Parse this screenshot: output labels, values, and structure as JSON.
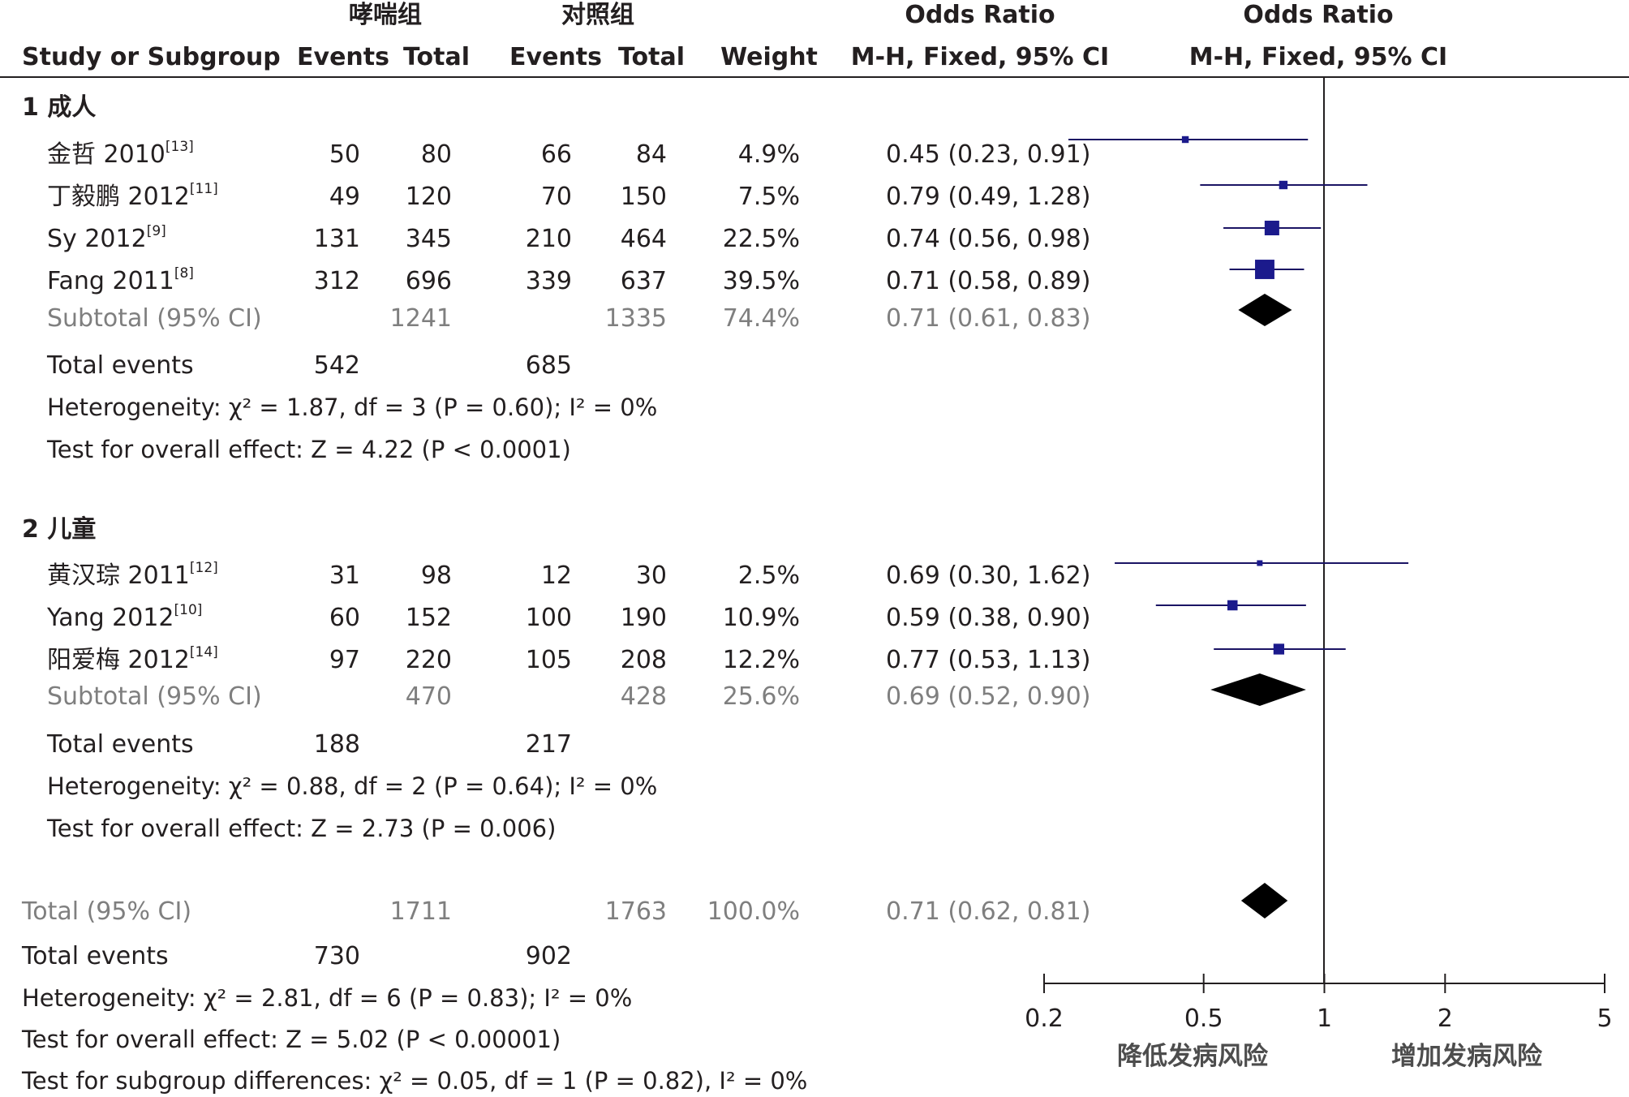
{
  "header": {
    "group1_name": "哮喘组",
    "group2_name": "对照组",
    "study_col": "Study or Subgroup",
    "events_label": "Events",
    "total_label": "Total",
    "weight_label": "Weight",
    "or_title": "Odds Ratio",
    "or_method": "M-H, Fixed, 95% CI"
  },
  "subgroups": [
    {
      "title": "1  成人",
      "studies": [
        {
          "name": "金哲 2010",
          "ref": "[13]",
          "e1": "50",
          "t1": "80",
          "e2": "66",
          "t2": "84",
          "weight": "4.9%",
          "ci_text": "0.45 (0.23, 0.91)"
        },
        {
          "name": "丁毅鹏 2012",
          "ref": "[11]",
          "e1": "49",
          "t1": "120",
          "e2": "70",
          "t2": "150",
          "weight": "7.5%",
          "ci_text": "0.79 (0.49, 1.28)"
        },
        {
          "name": "Sy 2012",
          "ref": "[9]",
          "e1": "131",
          "t1": "345",
          "e2": "210",
          "t2": "464",
          "weight": "22.5%",
          "ci_text": "0.74 (0.56, 0.98)"
        },
        {
          "name": "Fang 2011",
          "ref": "[8]",
          "e1": "312",
          "t1": "696",
          "e2": "339",
          "t2": "637",
          "weight": "39.5%",
          "ci_text": "0.71 (0.58, 0.89)"
        }
      ],
      "subtotal": {
        "label": "Subtotal (95% CI)",
        "t1": "1241",
        "t2": "1335",
        "weight": "74.4%",
        "ci_text": "0.71 (0.61, 0.83)"
      },
      "total_events": {
        "label": "Total events",
        "e1": "542",
        "e2": "685"
      },
      "heterogeneity": "Heterogeneity: χ² = 1.87, df = 3 (P = 0.60); I² = 0%",
      "overall": "Test for overall effect: Z = 4.22 (P < 0.0001)"
    },
    {
      "title": "2  儿童",
      "studies": [
        {
          "name": "黄汉琮 2011",
          "ref": "[12]",
          "e1": "31",
          "t1": "98",
          "e2": "12",
          "t2": "30",
          "weight": "2.5%",
          "ci_text": "0.69 (0.30, 1.62)"
        },
        {
          "name": "Yang 2012",
          "ref": "[10]",
          "e1": "60",
          "t1": "152",
          "e2": "100",
          "t2": "190",
          "weight": "10.9%",
          "ci_text": "0.59 (0.38, 0.90)"
        },
        {
          "name": "阳爱梅 2012",
          "ref": "[14]",
          "e1": "97",
          "t1": "220",
          "e2": "105",
          "t2": "208",
          "weight": "12.2%",
          "ci_text": "0.77 (0.53, 1.13)"
        }
      ],
      "subtotal": {
        "label": "Subtotal (95% CI)",
        "t1": "470",
        "t2": "428",
        "weight": "25.6%",
        "ci_text": "0.69 (0.52, 0.90)"
      },
      "total_events": {
        "label": "Total events",
        "e1": "188",
        "e2": "217"
      },
      "heterogeneity": "Heterogeneity: χ² = 0.88, df = 2 (P = 0.64); I² = 0%",
      "overall": "Test for overall effect: Z = 2.73 (P = 0.006)"
    }
  ],
  "total": {
    "label": "Total (95% CI)",
    "t1": "1711",
    "t2": "1763",
    "weight": "100.0%",
    "ci_text": "0.71 (0.62, 0.81)",
    "total_events_label": "Total events",
    "e1": "730",
    "e2": "902",
    "heterogeneity": "Heterogeneity: χ² = 2.81, df = 6 (P = 0.83); I² = 0%",
    "overall": "Test for overall effect: Z = 5.02 (P < 0.00001)",
    "subgroup_diff": "Test for subgroup differences: χ² = 0.05, df = 1 (P = 0.82), I² = 0%"
  },
  "axis": {
    "ticks": [
      0.2,
      0.5,
      1,
      2,
      5
    ],
    "tick_labels": [
      "0.2",
      "0.5",
      "1",
      "2",
      "5"
    ],
    "favours_left": "降低发病风险",
    "favours_right": "增加发病风险"
  },
  "colors": {
    "study_box": "#1b1a8c",
    "diamond": "#000000",
    "subtotal_text": "#7f7f7f"
  },
  "chart_data": {
    "type": "forest",
    "x_scale": "log",
    "xlim": [
      0.2,
      5
    ],
    "null_line": 1,
    "studies": [
      {
        "name": "金哲 2010",
        "or": 0.45,
        "lo": 0.23,
        "hi": 0.91,
        "weight": 4.9
      },
      {
        "name": "丁毅鹏 2012",
        "or": 0.79,
        "lo": 0.49,
        "hi": 1.28,
        "weight": 7.5
      },
      {
        "name": "Sy 2012",
        "or": 0.74,
        "lo": 0.56,
        "hi": 0.98,
        "weight": 22.5
      },
      {
        "name": "Fang 2011",
        "or": 0.71,
        "lo": 0.58,
        "hi": 0.89,
        "weight": 39.5
      },
      {
        "name": "黄汉琮 2011",
        "or": 0.69,
        "lo": 0.3,
        "hi": 1.62,
        "weight": 2.5
      },
      {
        "name": "Yang 2012",
        "or": 0.59,
        "lo": 0.38,
        "hi": 0.9,
        "weight": 10.9
      },
      {
        "name": "阳爱梅 2012",
        "or": 0.77,
        "lo": 0.53,
        "hi": 1.13,
        "weight": 12.2
      }
    ],
    "subtotals": [
      {
        "name": "Subtotal 1",
        "or": 0.71,
        "lo": 0.61,
        "hi": 0.83
      },
      {
        "name": "Subtotal 2",
        "or": 0.69,
        "lo": 0.52,
        "hi": 0.9
      }
    ],
    "overall": {
      "or": 0.71,
      "lo": 0.62,
      "hi": 0.81
    }
  }
}
